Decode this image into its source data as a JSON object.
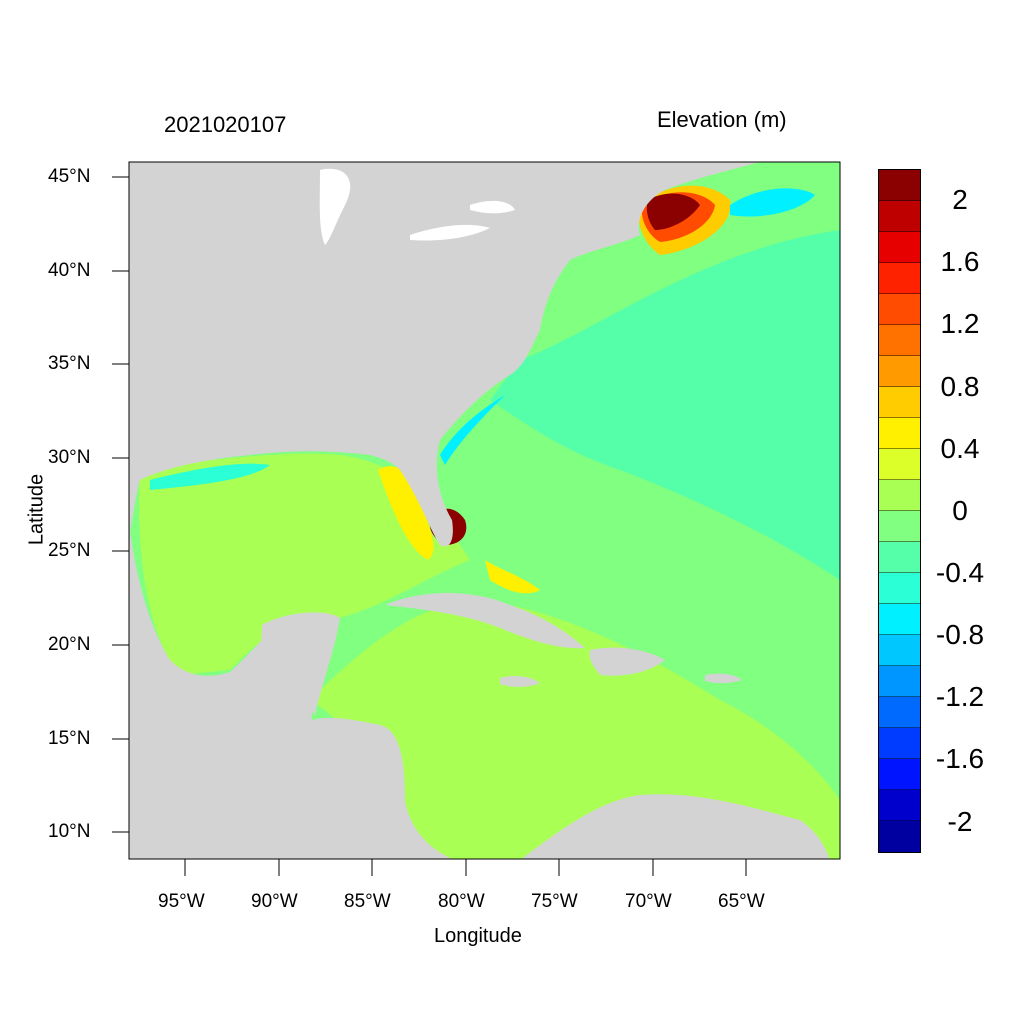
{
  "header": {
    "timestamp": "2021020107",
    "variable": "Elevation (m)"
  },
  "axes": {
    "xlabel": "Longitude",
    "ylabel": "Latitude",
    "lat_ticks": [
      "45°N",
      "40°N",
      "35°N",
      "30°N",
      "25°N",
      "20°N",
      "15°N",
      "10°N"
    ],
    "lon_ticks": [
      "95°W",
      "90°W",
      "85°W",
      "80°W",
      "75°W",
      "70°W",
      "65°W"
    ],
    "lon_range": [
      -98,
      -60
    ],
    "lat_range": [
      8.5,
      45.8
    ]
  },
  "colorbar": {
    "labels": [
      "2",
      "1.6",
      "1.2",
      "0.8",
      "0.4",
      "0",
      "-0.4",
      "-0.8",
      "-1.2",
      "-1.6",
      "-2"
    ],
    "colors": [
      "#8b0000",
      "#bf0000",
      "#e60000",
      "#ff2200",
      "#ff4c00",
      "#ff7200",
      "#ff9b00",
      "#ffcc00",
      "#fff000",
      "#dcff2a",
      "#aaff55",
      "#80ff80",
      "#55ffaa",
      "#2affd5",
      "#00f0ff",
      "#00c8ff",
      "#0096ff",
      "#006aff",
      "#003cff",
      "#0014ff",
      "#0000cc",
      "#0000a0"
    ]
  },
  "map": {
    "land_color": "#d3d3d3",
    "ocean_base_color": "#80ff80",
    "caribbean_color": "#aaff55",
    "high_surge_color": "#8b0000"
  }
}
